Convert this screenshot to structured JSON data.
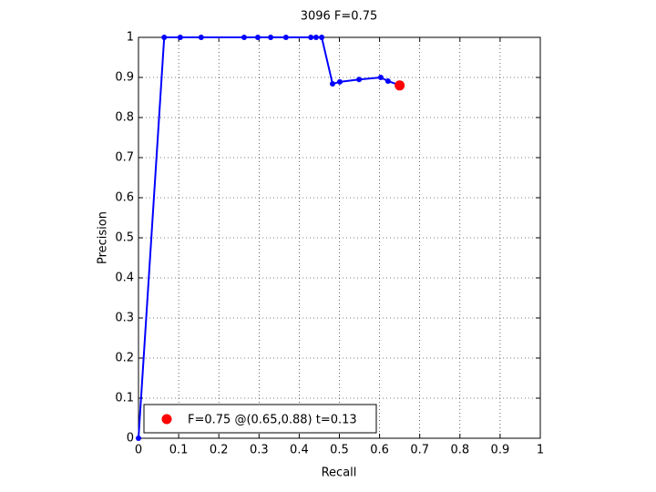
{
  "chart_data": {
    "type": "line",
    "title": "3096 F=0.75",
    "xlabel": "Recall",
    "ylabel": "Precision",
    "xlim": [
      0,
      1
    ],
    "ylim": [
      0,
      1
    ],
    "xticks": [
      0,
      0.1,
      0.2,
      0.3,
      0.4,
      0.5,
      0.6,
      0.7,
      0.8,
      0.9,
      1
    ],
    "yticks": [
      0,
      0.1,
      0.2,
      0.3,
      0.4,
      0.5,
      0.6,
      0.7,
      0.8,
      0.9,
      1
    ],
    "grid": true,
    "legend": "lower left",
    "series": [
      {
        "color": "#0000ff",
        "style": "line",
        "x": [
          0,
          0.064,
          0.104,
          0.156,
          0.263,
          0.297,
          0.329,
          0.367,
          0.429,
          0.442,
          0.456,
          0.483,
          0.501,
          0.549,
          0.603,
          0.621,
          0.646
        ],
        "values": [
          0,
          1,
          1,
          1,
          1,
          1,
          1,
          1,
          1,
          1,
          1,
          0.884,
          0.889,
          0.895,
          0.9,
          0.891,
          0.882
        ]
      },
      {
        "name": "F=0.75 @(0.65,0.88) t=0.13",
        "color": "#ff0000",
        "style": "marker",
        "x": [
          0.65
        ],
        "values": [
          0.88
        ]
      }
    ]
  }
}
